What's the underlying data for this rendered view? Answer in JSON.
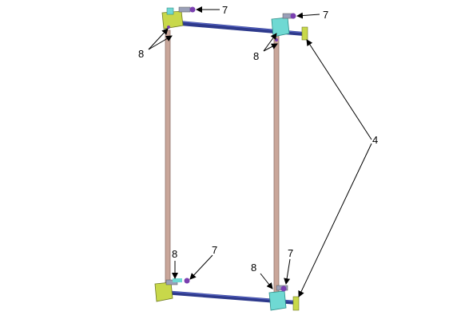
{
  "figure": {
    "description_labels": {
      "label_7_top_left": "7",
      "label_7_top_right": "7",
      "label_8_top_left": "8",
      "label_8_top_right": "8",
      "label_4": "4",
      "label_8_bottom_left": "8",
      "label_7_bottom_left": "7",
      "label_8_bottom_right": "8",
      "label_7_bottom_right": "7"
    },
    "colors": {
      "rod": "#c9a69a",
      "rod_edge": "#8f746b",
      "bar": "#2e3a8c",
      "bar_highlight": "#5a67c9",
      "bracket_green": "#c8d84a",
      "bracket_cyan": "#6fd9d3",
      "bolt_purple": "#7a3fb0",
      "leader": "#000000"
    }
  }
}
